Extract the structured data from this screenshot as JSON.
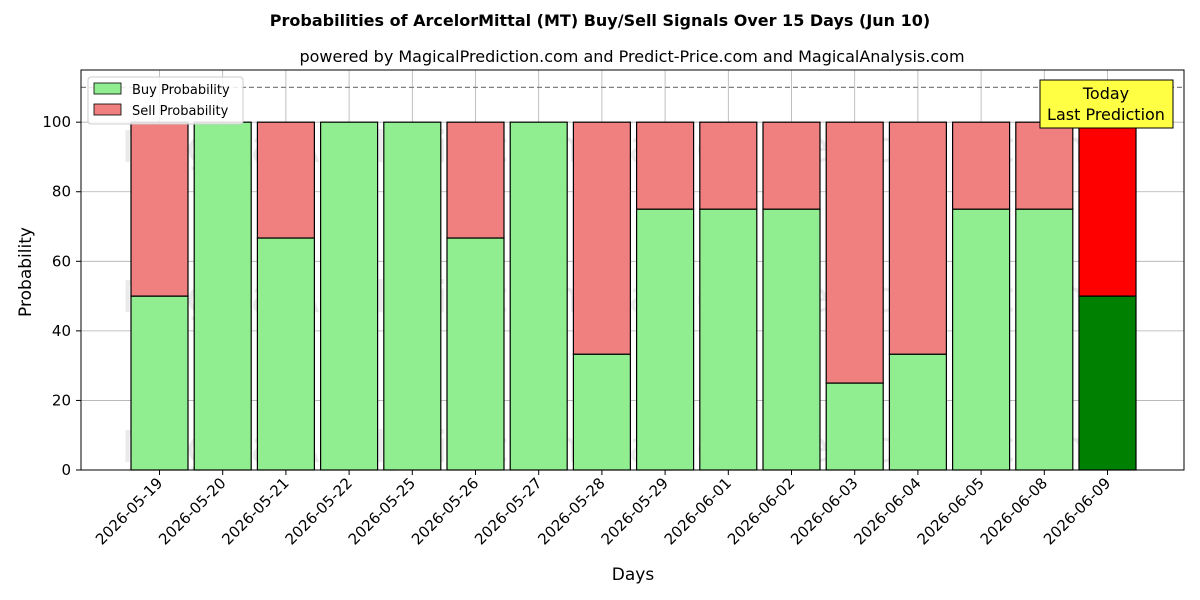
{
  "chart_data": {
    "type": "bar",
    "stacked": true,
    "title": "Probabilities of ArcelorMittal (MT) Buy/Sell Signals Over 15 Days (Jun 10)",
    "subtitle": "powered by MagicalPrediction.com and Predict-Price.com and MagicalAnalysis.com",
    "xlabel": "Days",
    "ylabel": "Probability",
    "ylim": [
      0,
      115
    ],
    "yticks": [
      0,
      20,
      40,
      60,
      80,
      100
    ],
    "grid": true,
    "legend_position": "top-left",
    "reference_line": 110,
    "categories": [
      "2026-05-19",
      "2026-05-20",
      "2026-05-21",
      "2026-05-22",
      "2026-05-25",
      "2026-05-26",
      "2026-05-27",
      "2026-05-28",
      "2026-05-29",
      "2026-06-01",
      "2026-06-02",
      "2026-06-03",
      "2026-06-04",
      "2026-06-05",
      "2026-06-08",
      "2026-06-09"
    ],
    "series": [
      {
        "name": "Buy Probability",
        "color": "#90ee90",
        "values": [
          50,
          100,
          66.7,
          100,
          100,
          66.7,
          100,
          33.3,
          75,
          75,
          75,
          25,
          33.3,
          75,
          75,
          50
        ]
      },
      {
        "name": "Sell Probability",
        "color": "#f08080",
        "values": [
          50,
          0,
          33.3,
          0,
          0,
          33.3,
          0,
          66.7,
          25,
          25,
          25,
          75,
          66.7,
          25,
          25,
          50
        ]
      }
    ],
    "highlight": {
      "index": 15,
      "buy_color": "#008000",
      "sell_color": "#ff0000"
    },
    "annotation": {
      "lines": [
        "Today",
        "Last Prediction"
      ],
      "background": "#ffff44"
    },
    "watermarks": [
      "MagicalAnalysis.com",
      "MagicalPrediction.com"
    ]
  }
}
